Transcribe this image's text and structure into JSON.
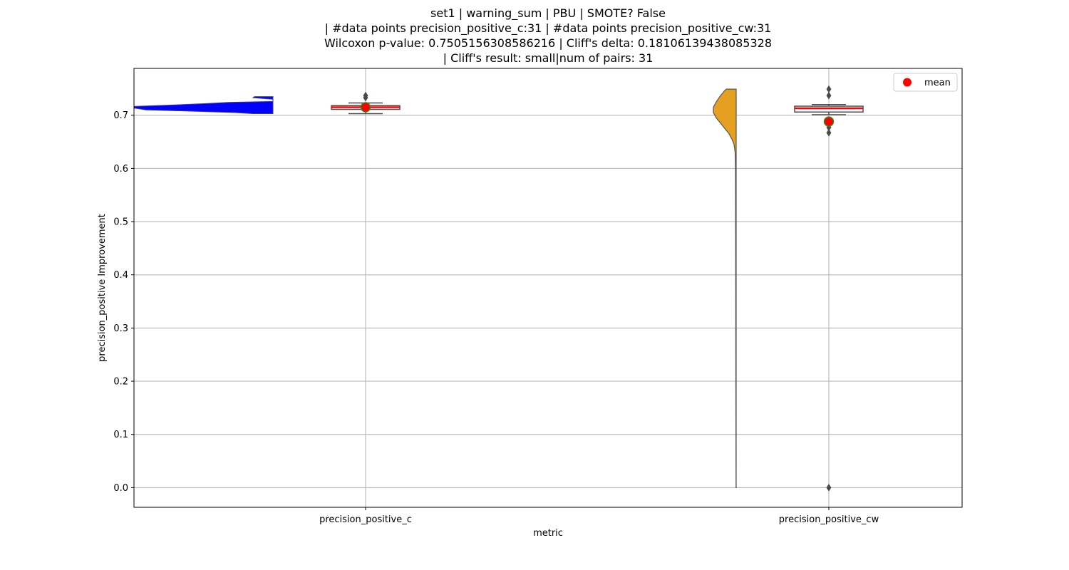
{
  "chart_data": {
    "type": "violin",
    "title_lines": [
      "set1 | warning_sum | PBU | SMOTE? False",
      "| #data points precision_positive_c:31 | #data points precision_positive_cw:31",
      "Wilcoxon p-value: 0.7505156308586216 | Cliff's delta: 0.18106139438085328",
      "| Cliff's result: small|num of pairs: 31"
    ],
    "xlabel": "metric",
    "ylabel": "precision_positive Improvement",
    "categories": [
      "precision_positive_c",
      "precision_positive_cw"
    ],
    "ylim": [
      -0.037,
      0.788
    ],
    "yticks": [
      0.0,
      0.1,
      0.2,
      0.3,
      0.4,
      0.5,
      0.6,
      0.7
    ],
    "ytick_labels": [
      "0.0",
      "0.1",
      "0.2",
      "0.3",
      "0.4",
      "0.5",
      "0.6",
      "0.7"
    ],
    "grid": true,
    "legend": {
      "position": "top-right",
      "entries": [
        {
          "label": "mean",
          "color": "#ff0000",
          "marker": "circle"
        }
      ]
    },
    "series": [
      {
        "category": "precision_positive_c",
        "violin_color": "#0000ff",
        "violin_range": [
          0.703,
          0.735
        ],
        "box": {
          "q1": 0.711,
          "median": 0.715,
          "q3": 0.718,
          "whisker_low": 0.703,
          "whisker_high": 0.723
        },
        "outliers": [
          0.733,
          0.737
        ],
        "mean": 0.715
      },
      {
        "category": "precision_positive_cw",
        "violin_color": "#e5a022",
        "violin_range": [
          0.0,
          0.749
        ],
        "box": {
          "q1": 0.706,
          "median": 0.713,
          "q3": 0.717,
          "whisker_low": 0.701,
          "whisker_high": 0.72
        },
        "outliers": [
          0.0,
          0.667,
          0.677,
          0.737,
          0.749
        ],
        "mean": 0.688
      }
    ]
  },
  "colors": {
    "mean_marker": "#ff0000",
    "mean_marker_edge": "#2e8b1f",
    "median_line": "#ff0000",
    "box_edge": "#4c4c4c",
    "grid": "#b0b0b0"
  }
}
